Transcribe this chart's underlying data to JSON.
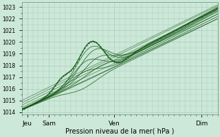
{
  "title": "",
  "xlabel": "Pression niveau de la mer( hPa )",
  "bg_color": "#cce8d8",
  "grid_color": "#aaccbb",
  "line_color": "#1a5c1a",
  "ylim": [
    1013.8,
    1023.4
  ],
  "xlim": [
    0,
    108
  ],
  "yticks": [
    1014,
    1015,
    1016,
    1017,
    1018,
    1019,
    1020,
    1021,
    1022,
    1023
  ],
  "xtick_positions": [
    3,
    15,
    51,
    99
  ],
  "xtick_labels": [
    "Jeu",
    "Sam",
    "Ven",
    "Dim"
  ],
  "ytick_fontsize": 5.5,
  "xtick_fontsize": 6.5
}
